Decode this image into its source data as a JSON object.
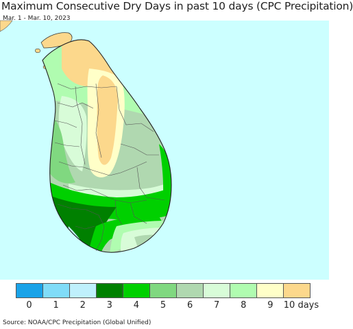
{
  "title": "Maximum Consecutive Dry Days in past 10 days (CPC Precipitation)",
  "date_range": "Mar. 1 - Mar. 10, 2023",
  "source": "Source: NOAA/CPC Precipitation (Global Unified)",
  "colors": {
    "ocean": "#ccffff",
    "land_outside": "#ffffff",
    "border": "#555555"
  },
  "legend": {
    "items": [
      {
        "label": "0",
        "color": "#1aa3e8"
      },
      {
        "label": "1",
        "color": "#80dcf8"
      },
      {
        "label": "2",
        "color": "#bff0fc"
      },
      {
        "label": "3",
        "color": "#008000"
      },
      {
        "label": "4",
        "color": "#00d000"
      },
      {
        "label": "5",
        "color": "#80d880"
      },
      {
        "label": "6",
        "color": "#b0d8b0"
      },
      {
        "label": "7",
        "color": "#d8fcd8"
      },
      {
        "label": "8",
        "color": "#b0fcb0"
      },
      {
        "label": "9",
        "color": "#ffffc8"
      },
      {
        "label": "10 days",
        "color": "#fcd88c"
      }
    ]
  }
}
